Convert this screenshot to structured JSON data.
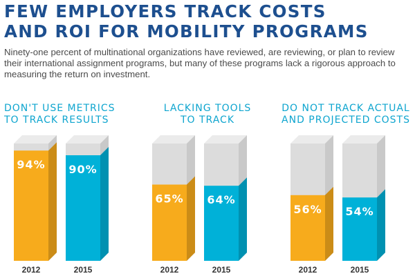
{
  "header": {
    "title_line1": "FEW EMPLOYERS TRACK COSTS",
    "title_line2": "AND ROI FOR MOBILITY PROGRAMS",
    "subtitle": "Ninety-one percent of multinational organizations have reviewed, are reviewing, or plan to review their international assignment programs, but many of these programs lack a rigorous approach to measuring the return on investment."
  },
  "colors": {
    "title": "#1d4f8f",
    "group_title": "#0ea5cf",
    "series_2012": "#f7ab1c",
    "series_2015": "#00b1d8",
    "empty": "#dcdcdc"
  },
  "chart_data": [
    {
      "type": "bar",
      "title": "DON'T USE METRICS\nTO TRACK RESULTS",
      "categories": [
        "2012",
        "2015"
      ],
      "values": [
        94,
        90
      ],
      "value_labels": [
        "94%",
        "90%"
      ],
      "ylim": [
        0,
        100
      ]
    },
    {
      "type": "bar",
      "title": "LACKING TOOLS\nTO TRACK",
      "categories": [
        "2012",
        "2015"
      ],
      "values": [
        65,
        64
      ],
      "value_labels": [
        "65%",
        "64%"
      ],
      "ylim": [
        0,
        100
      ]
    },
    {
      "type": "bar",
      "title": "DO NOT TRACK ACTUAL\nAND PROJECTED COSTS",
      "categories": [
        "2012",
        "2015"
      ],
      "values": [
        56,
        54
      ],
      "value_labels": [
        "56%",
        "54%"
      ],
      "ylim": [
        0,
        100
      ]
    }
  ]
}
